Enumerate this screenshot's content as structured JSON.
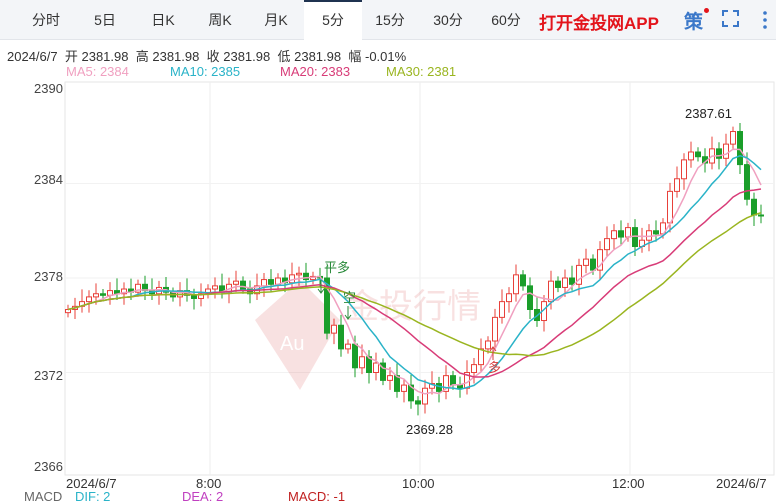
{
  "tabs": [
    {
      "label": "分时"
    },
    {
      "label": "5日"
    },
    {
      "label": "日K"
    },
    {
      "label": "周K"
    },
    {
      "label": "月K"
    },
    {
      "label": "5分",
      "selected": true
    },
    {
      "label": "15分"
    },
    {
      "label": "30分"
    },
    {
      "label": "60分"
    }
  ],
  "promo": "打开金投网APP",
  "strategy": "策",
  "icons": {
    "strategy": "strategy-icon",
    "fullscreen": "fullscreen-icon",
    "more": "more-vertical-icon"
  },
  "info": {
    "date": "2024/6/7",
    "open_label": "开",
    "open": "2381.98",
    "high_label": "高",
    "high": "2381.98",
    "close_label": "收",
    "close": "2381.98",
    "low_label": "低",
    "low": "2381.98",
    "amp_label": "幅",
    "amp": "-0.01%"
  },
  "ma_legend": [
    {
      "text": "MA5: 2384",
      "color": "#f0a0c0"
    },
    {
      "text": "MA10: 2385",
      "color": "#2ab3c8"
    },
    {
      "text": "MA20: 2383",
      "color": "#d83c78"
    },
    {
      "text": "MA30: 2381",
      "color": "#9ab520"
    }
  ],
  "macd": {
    "label": "MACD",
    "dif": "DIF: 2",
    "dea": "DEA: 2",
    "macd": "MACD: -1"
  },
  "chart_data": {
    "type": "candlestick",
    "ylim": [
      2366,
      2390
    ],
    "y_ticks": [
      "2390",
      "2384",
      "2378",
      "2372",
      "2366"
    ],
    "x_ticks": [
      "2024/6/7",
      "8:00",
      "10:00",
      "12:00",
      "2024/6/7"
    ],
    "colors": {
      "up": "#e8403a",
      "down": "#1a9e2a"
    },
    "annotations": {
      "high": "2387.61",
      "low": "2369.28",
      "signals": [
        "平多",
        "空",
        "多"
      ]
    },
    "watermark": "金投行情",
    "closes": [
      2376.0,
      2376.2,
      2376.5,
      2376.8,
      2377.0,
      2376.9,
      2377.2,
      2377.0,
      2377.3,
      2377.1,
      2377.6,
      2377.2,
      2377.0,
      2377.4,
      2377.1,
      2376.8,
      2377.2,
      2376.9,
      2376.7,
      2377.0,
      2377.3,
      2377.5,
      2377.1,
      2377.6,
      2377.8,
      2377.3,
      2377.0,
      2377.5,
      2377.9,
      2377.6,
      2378.0,
      2377.7,
      2378.2,
      2378.3,
      2377.9,
      2378.1,
      2378.0,
      2374.5,
      2375.0,
      2373.5,
      2373.8,
      2372.3,
      2373.0,
      2372.0,
      2372.6,
      2371.5,
      2371.8,
      2370.8,
      2371.2,
      2370.2,
      2370.0,
      2371.0,
      2371.3,
      2370.8,
      2371.8,
      2371.2,
      2371.0,
      2372.0,
      2372.5,
      2373.5,
      2374.0,
      2375.5,
      2376.5,
      2377.0,
      2378.2,
      2377.5,
      2376.0,
      2375.3,
      2376.5,
      2377.8,
      2377.4,
      2378.0,
      2377.6,
      2378.8,
      2379.2,
      2378.5,
      2379.8,
      2380.5,
      2381.0,
      2380.6,
      2381.2,
      2380.0,
      2380.4,
      2381.0,
      2380.8,
      2381.5,
      2383.5,
      2384.3,
      2385.5,
      2386.0,
      2385.7,
      2385.3,
      2386.2,
      2385.6,
      2386.5,
      2387.3,
      2385.2,
      2383.0,
      2382.0,
      2381.98
    ]
  }
}
